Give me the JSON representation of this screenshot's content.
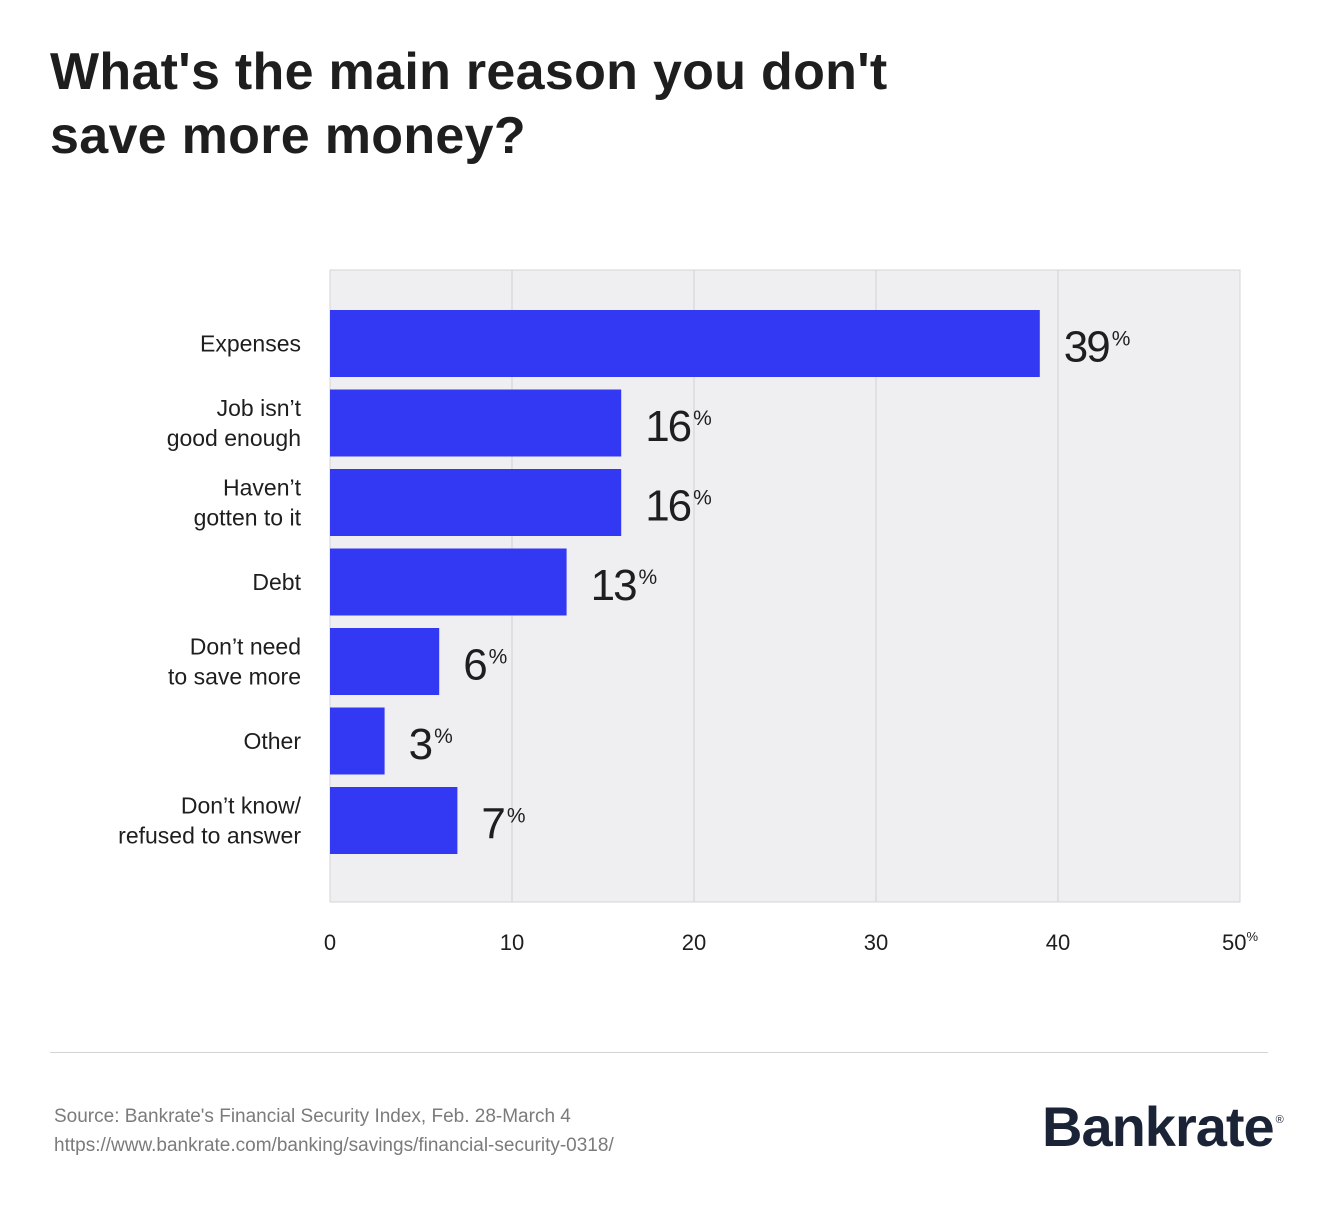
{
  "title_lines": [
    "What's the main reason you don't",
    "save more money?"
  ],
  "chart_data": {
    "type": "bar",
    "orientation": "horizontal",
    "title": "What's the main reason you don't save more money?",
    "categories": [
      [
        "Expenses"
      ],
      [
        "Job isn’t",
        "good enough"
      ],
      [
        "Haven’t",
        "gotten to it"
      ],
      [
        "Debt"
      ],
      [
        "Don’t need",
        "to save more"
      ],
      [
        "Other"
      ],
      [
        "Don’t know/",
        "refused to answer"
      ]
    ],
    "values": [
      39,
      16,
      16,
      13,
      6,
      3,
      7
    ],
    "value_suffix": "%",
    "xlim": [
      0,
      50
    ],
    "xticks": [
      "0",
      "10",
      "20",
      "30",
      "40",
      "50"
    ],
    "xtick_last_suffix": "%",
    "grid": true,
    "bar_color": "#3339F3",
    "plot_background": "#EFEFF2"
  },
  "footer": {
    "source": "Source: Bankrate's Financial Security Index, Feb. 28-March 4",
    "url": "https://www.bankrate.com/banking/savings/financial-security-0318/",
    "logo": "Bankrate",
    "logo_mark": "®"
  }
}
